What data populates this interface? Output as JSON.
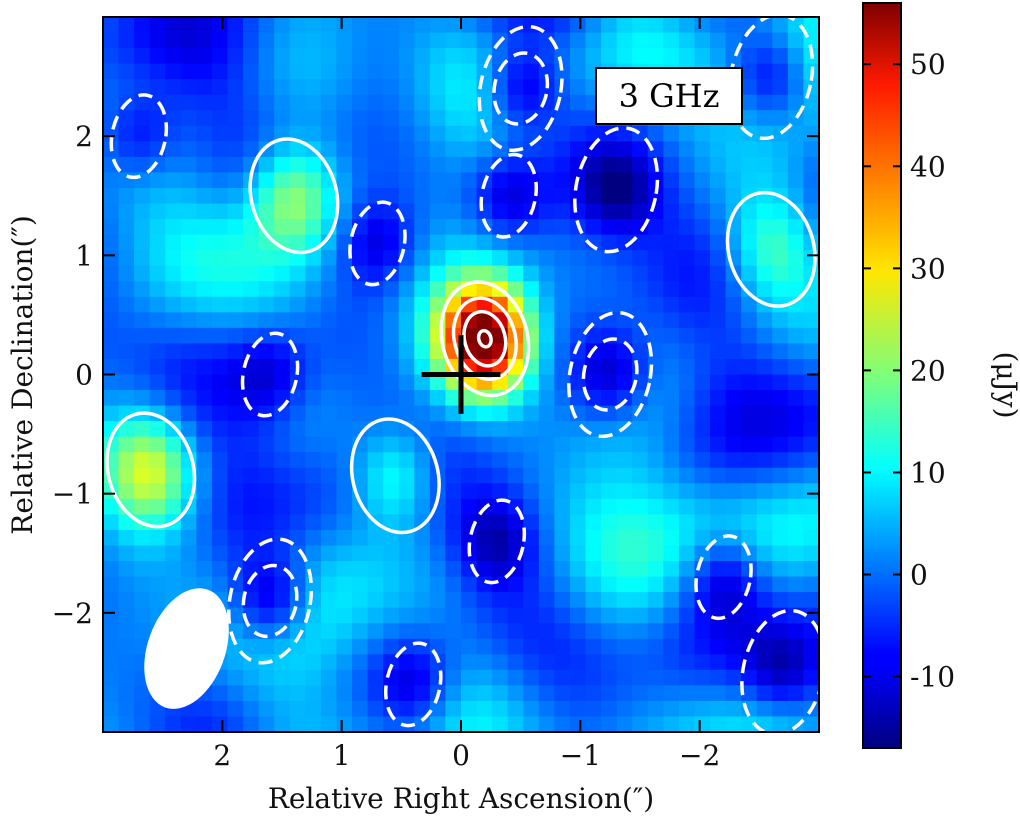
{
  "chart_data": {
    "type": "heatmap",
    "title": "",
    "annotation": "3 GHz",
    "xlabel": "Relative Right Ascension(″)",
    "ylabel": "Relative Declination(″)",
    "colorbar_label": "(μJy)",
    "xlim": [
      3.0,
      -3.0
    ],
    "ylim": [
      -3.0,
      3.0
    ],
    "x_ticks": [
      2,
      1,
      0,
      -1,
      -2
    ],
    "x_tick_labels": [
      "2",
      "1",
      "0",
      "−1",
      "−2"
    ],
    "y_ticks": [
      2,
      1,
      0,
      -1,
      -2
    ],
    "y_tick_labels": [
      "2",
      "1",
      "0",
      "−1",
      "−2"
    ],
    "colorbar_range": [
      -17,
      56
    ],
    "colorbar_ticks": [
      50,
      40,
      30,
      20,
      10,
      0,
      -10
    ],
    "colorbar_tick_labels": [
      "50",
      "40",
      "30",
      "20",
      "10",
      "0",
      "-10"
    ],
    "colormap": "jet",
    "grid": false,
    "positive_contour_color": "#ffffff",
    "negative_contour_style": "dashed",
    "marker": {
      "type": "cross",
      "x": 0.0,
      "y": 0.0,
      "color": "#000000"
    },
    "beam": {
      "x": 2.3,
      "y": -2.3,
      "major": 1.05,
      "minor": 0.65,
      "pa_deg": 20,
      "color": "#ffffff"
    },
    "positive_sources": [
      {
        "x": -0.2,
        "y": 0.3,
        "peak": 55
      },
      {
        "x": 1.4,
        "y": 1.5,
        "peak": 19
      },
      {
        "x": 2.6,
        "y": -0.8,
        "peak": 18
      },
      {
        "x": 0.55,
        "y": -0.85,
        "peak": 18
      },
      {
        "x": -2.6,
        "y": 1.05,
        "peak": 12
      }
    ],
    "negative_sources": [
      {
        "x": -0.5,
        "y": 2.4,
        "peak": -16
      },
      {
        "x": -2.6,
        "y": 2.5,
        "peak": -13
      },
      {
        "x": 2.7,
        "y": 2.0,
        "peak": -12
      },
      {
        "x": 0.7,
        "y": 1.1,
        "peak": -12
      },
      {
        "x": -0.4,
        "y": 1.5,
        "peak": -11
      },
      {
        "x": -1.3,
        "y": 1.55,
        "peak": -13
      },
      {
        "x": -1.25,
        "y": 0.0,
        "peak": -15
      },
      {
        "x": 1.6,
        "y": -1.9,
        "peak": -17
      },
      {
        "x": -0.3,
        "y": -1.4,
        "peak": -12
      },
      {
        "x": -2.2,
        "y": -1.7,
        "peak": -12
      },
      {
        "x": -2.7,
        "y": -2.5,
        "peak": -13
      },
      {
        "x": 1.6,
        "y": 0.0,
        "peak": -10
      },
      {
        "x": 0.4,
        "y": -2.6,
        "peak": -11
      }
    ]
  }
}
